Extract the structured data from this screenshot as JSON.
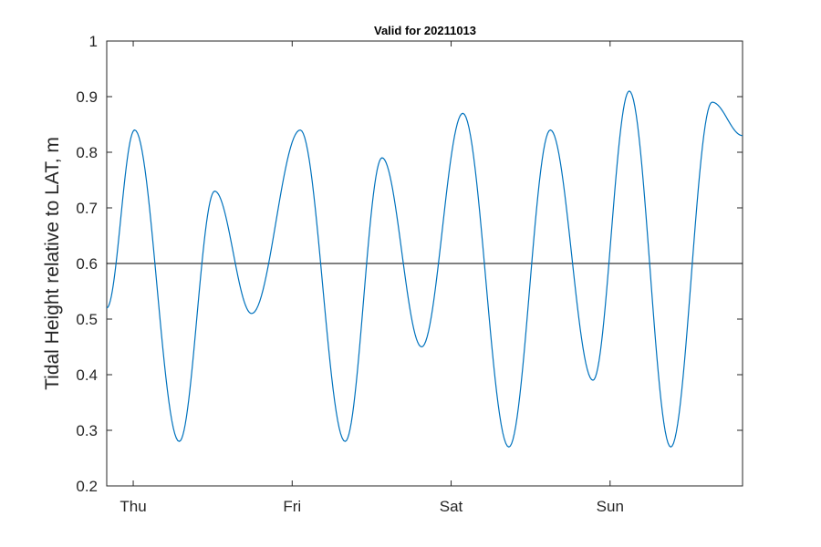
{
  "chart_data": {
    "type": "line",
    "title": "Valid for 20211013",
    "xlabel": "",
    "ylabel": "Tidal Height relative to LAT, m",
    "ylim": [
      0.2,
      1.0
    ],
    "yticks": [
      0.2,
      0.3,
      0.4,
      0.5,
      0.6,
      0.7,
      0.8,
      0.9,
      1.0
    ],
    "yticklabels": [
      "0.2",
      "0.3",
      "0.4",
      "0.5",
      "0.6",
      "0.7",
      "0.8",
      "0.9",
      "1"
    ],
    "xlim": [
      "2021-10-13T20:00",
      "2021-10-17T20:00"
    ],
    "xticks": [
      "2021-10-14T00:00",
      "2021-10-15T00:00",
      "2021-10-16T00:00",
      "2021-10-17T00:00"
    ],
    "xticklabels": [
      "Thu",
      "Fri",
      "Sat",
      "Sun"
    ],
    "grid": false,
    "reference_line": {
      "y": 0.6,
      "color": "#000000"
    },
    "series": [
      {
        "color": "#0072BD",
        "points": [
          {
            "t": "2021-10-13T20:00",
            "y": 0.52
          },
          {
            "t": "2021-10-14T00:13",
            "y": 0.84
          },
          {
            "t": "2021-10-14T06:57",
            "y": 0.28
          },
          {
            "t": "2021-10-14T12:18",
            "y": 0.73
          },
          {
            "t": "2021-10-14T17:53",
            "y": 0.51
          },
          {
            "t": "2021-10-15T01:13",
            "y": 0.84
          },
          {
            "t": "2021-10-15T08:00",
            "y": 0.28
          },
          {
            "t": "2021-10-15T13:34",
            "y": 0.79
          },
          {
            "t": "2021-10-15T19:33",
            "y": 0.45
          },
          {
            "t": "2021-10-16T01:46",
            "y": 0.87
          },
          {
            "t": "2021-10-16T08:43",
            "y": 0.27
          },
          {
            "t": "2021-10-16T14:59",
            "y": 0.84
          },
          {
            "t": "2021-10-16T21:25",
            "y": 0.39
          },
          {
            "t": "2021-10-17T02:54",
            "y": 0.91
          },
          {
            "t": "2021-10-17T09:10",
            "y": 0.27
          },
          {
            "t": "2021-10-17T15:24",
            "y": 0.89
          },
          {
            "t": "2021-10-17T20:00",
            "y": 0.83
          }
        ]
      }
    ]
  }
}
